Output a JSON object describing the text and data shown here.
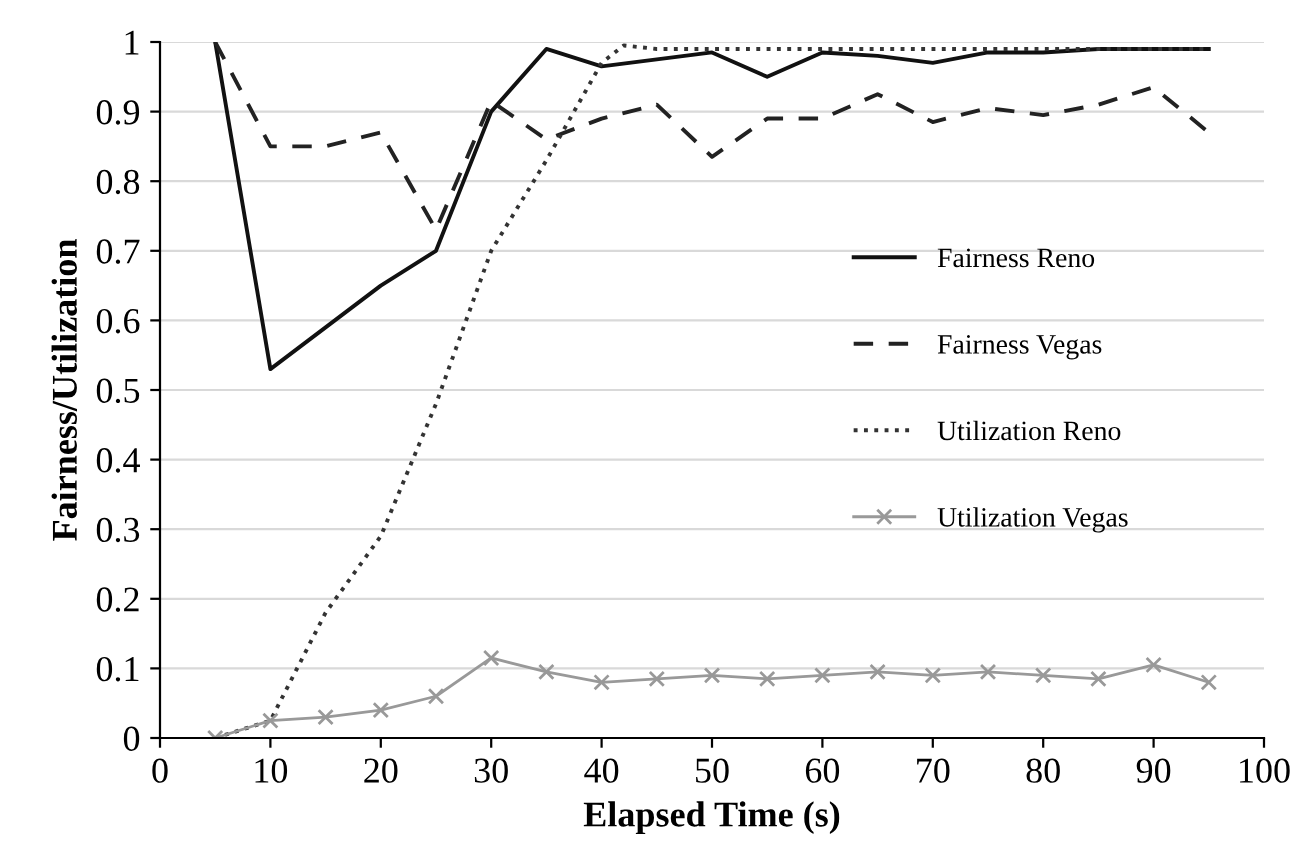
{
  "chart_data": {
    "type": "line",
    "xlabel": "Elapsed Time (s)",
    "ylabel": "Fairness/Utilization",
    "x": [
      5,
      10,
      15,
      20,
      25,
      30,
      35,
      40,
      45,
      50,
      55,
      60,
      65,
      70,
      75,
      80,
      85,
      90,
      95
    ],
    "series": [
      {
        "name": "Fairness Reno",
        "color": "#111111",
        "line_style": "solid",
        "marker": "none",
        "values": [
          1.0,
          0.53,
          0.59,
          0.65,
          0.7,
          0.9,
          0.99,
          0.965,
          0.975,
          0.985,
          0.95,
          0.985,
          0.98,
          0.97,
          0.985,
          0.985,
          0.99,
          0.99,
          0.99
        ]
      },
      {
        "name": "Fairness Vegas",
        "color": "#222222",
        "line_style": "dashed",
        "marker": "none",
        "values": [
          1.0,
          0.85,
          0.85,
          0.87,
          0.73,
          0.915,
          0.86,
          0.89,
          0.91,
          0.835,
          0.89,
          0.89,
          0.925,
          0.885,
          0.905,
          0.895,
          0.91,
          0.935,
          0.87
        ]
      },
      {
        "name": "Utilization Reno",
        "color": "#333333",
        "line_style": "dotted",
        "marker": "none",
        "x": [
          5,
          10,
          15,
          20,
          25,
          30,
          35,
          40,
          42,
          45,
          50,
          55,
          60,
          65,
          70,
          75,
          80,
          85,
          90,
          95
        ],
        "values": [
          0,
          0.025,
          0.18,
          0.29,
          0.48,
          0.7,
          0.83,
          0.97,
          0.995,
          0.99,
          0.99,
          0.99,
          0.99,
          0.99,
          0.99,
          0.99,
          0.99,
          0.99,
          0.99,
          0.99
        ]
      },
      {
        "name": "Utilization Vegas",
        "color": "#999999",
        "line_style": "solid",
        "marker": "cross",
        "values": [
          0,
          0.025,
          0.03,
          0.04,
          0.06,
          0.115,
          0.095,
          0.08,
          0.085,
          0.09,
          0.085,
          0.09,
          0.095,
          0.09,
          0.095,
          0.09,
          0.085,
          0.105,
          0.08
        ]
      }
    ],
    "xlim": [
      0,
      100
    ],
    "xticks": [
      0,
      10,
      20,
      30,
      40,
      50,
      60,
      70,
      80,
      90,
      100
    ],
    "ylim": [
      0,
      1
    ],
    "yticks": [
      0,
      0.1,
      0.2,
      0.3,
      0.4,
      0.5,
      0.6,
      0.7,
      0.8,
      0.9,
      1
    ],
    "grid": "y",
    "legend": "right"
  }
}
